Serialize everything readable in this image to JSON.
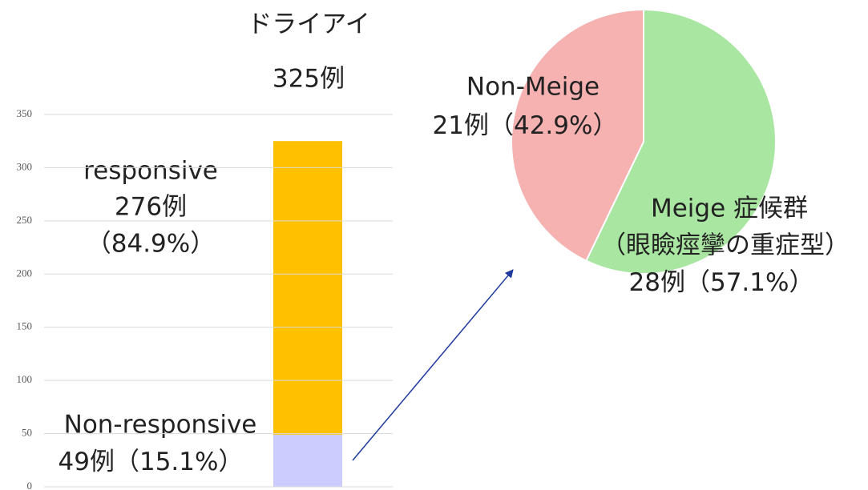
{
  "chart_data": [
    {
      "type": "bar",
      "stacked": true,
      "title": "ドライアイ",
      "total_label": "325例",
      "categories": [
        null
      ],
      "series": [
        {
          "name": "Non-responsive",
          "color": "#ccccff",
          "values": [
            49
          ],
          "value_labels": [
            "49例"
          ],
          "share_labels": [
            "（15.1%）"
          ]
        },
        {
          "name": "responsive",
          "color": "#ffc000",
          "values": [
            276
          ],
          "value_labels": [
            "276例"
          ],
          "share_labels": [
            "（84.9%）"
          ]
        }
      ],
      "ylim": [
        0,
        350
      ],
      "yticks": [
        0,
        50,
        100,
        150,
        200,
        250,
        300,
        350
      ],
      "grid": true
    },
    {
      "type": "pie",
      "categories": [
        "Meige 症候群",
        "Non-Meige"
      ],
      "values": [
        28,
        21
      ],
      "value_labels": [
        "28例",
        "21例"
      ],
      "share_labels": [
        "（57.1%）",
        "（42.9%）"
      ],
      "annotation": "（眼瞼痙攣の重症型）",
      "colors": [
        "#a9e6a1",
        "#f6b1b1"
      ]
    }
  ]
}
